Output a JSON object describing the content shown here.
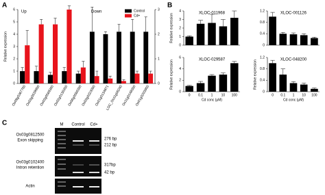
{
  "panels": [
    "A",
    "B",
    "C"
  ],
  "chart_data": [
    {
      "type": "bar",
      "title": "Up",
      "ylabel": "Relative expression",
      "categories": [
        "Os09g0367700",
        "Os03g0539900",
        "Os03g0569300",
        "Os02g0136300",
        "Os06g0566300"
      ],
      "series": [
        {
          "color": "#000000",
          "values": [
            1,
            1,
            0.7,
            1,
            0.8
          ],
          "errors": [
            0.3,
            0.4,
            0.2,
            0.3,
            0.2
          ]
        },
        {
          "color": "#e8141c",
          "values": [
            3.1,
            4.8,
            4.8,
            6,
            1.3
          ],
          "errors": [
            1.2,
            0.4,
            0.5,
            0.3,
            0.5
          ]
        }
      ],
      "ylim": [
        0,
        6
      ],
      "yticks": [
        0,
        1,
        2,
        3,
        4,
        5,
        6
      ],
      "side": "left"
    },
    {
      "type": "bar",
      "title": "Down",
      "categories": [
        "Os03g0323000",
        "Os01g0134871",
        "LOC_Os11g06240",
        "Os11g0148300",
        "Os01g0203900"
      ],
      "series": [
        {
          "name": "Control",
          "color": "#000000",
          "values": [
            2.1,
            2,
            2.1,
            2.1,
            2.1
          ],
          "errors": [
            1,
            0.1,
            0.3,
            0.5,
            0.6
          ]
        },
        {
          "name": "Cd+",
          "color": "#e8141c",
          "values": [
            0.3,
            0.2,
            0.1,
            0.4,
            0.4
          ],
          "errors": [
            0.2,
            0.1,
            0.05,
            0.1,
            0.1
          ]
        }
      ],
      "ylim": [
        0,
        3
      ],
      "yticks": [
        0,
        1,
        2,
        3
      ],
      "side": "right",
      "legend": "top-right"
    },
    {
      "type": "bar",
      "title": "XLOC-011968",
      "ylabel": "Relative expression",
      "color": "#000000",
      "values": [
        1,
        2.5,
        2.6,
        2.2,
        3.2
      ],
      "errors": [
        0.1,
        0.4,
        1,
        0.8,
        0.8
      ],
      "ylim": [
        0,
        4
      ],
      "yticks": [
        0,
        1,
        2,
        3,
        4
      ]
    },
    {
      "type": "bar",
      "title": "XLOC-001126",
      "color": "#000000",
      "values": [
        1,
        0.4,
        0.38,
        0.35,
        0.25
      ],
      "errors": [
        0.15,
        0.05,
        0.05,
        0.05,
        0.03
      ],
      "ylim": [
        0,
        1.2
      ],
      "yticks": [
        0,
        0.4,
        0.8,
        1.2
      ]
    },
    {
      "type": "bar",
      "title": "XLOC-029587",
      "ylabel": "Relative expression",
      "xlabel": "Cd conc (μM)",
      "color": "#000000",
      "categories": [
        "0",
        "0.1",
        "1",
        "10",
        "100"
      ],
      "values": [
        1,
        1.5,
        2.8,
        3,
        5
      ],
      "errors": [
        0.1,
        0.3,
        0.2,
        0.3,
        0.3
      ],
      "ylim": [
        0,
        6
      ],
      "yticks": [
        0,
        2,
        4,
        6
      ]
    },
    {
      "type": "bar",
      "title": "XLOC-048200",
      "ylabel": "Relative expression",
      "xlabel": "Cd conc (μM)",
      "color": "#000000",
      "categories": [
        "0",
        "0.1",
        "1",
        "10",
        "100"
      ],
      "values": [
        1,
        0.6,
        0.3,
        0.25,
        0.1
      ],
      "errors": [
        0.1,
        0.2,
        0.05,
        0.05,
        0.03
      ],
      "ylim": [
        0,
        1.2
      ],
      "yticks": [
        0,
        0.4,
        0.8,
        1.2
      ]
    }
  ],
  "gel": {
    "lanes": [
      "M",
      "Control",
      "Cd+"
    ],
    "blots": [
      {
        "gene": "Os03g0812500",
        "event": "Exon skipping",
        "bands": [
          "276 bp",
          "212 bp"
        ]
      },
      {
        "gene": "Os03g0102400",
        "event": "Intron retention",
        "bands": [
          "317bp",
          "42 bp"
        ]
      },
      {
        "gene": "Actin"
      }
    ]
  }
}
